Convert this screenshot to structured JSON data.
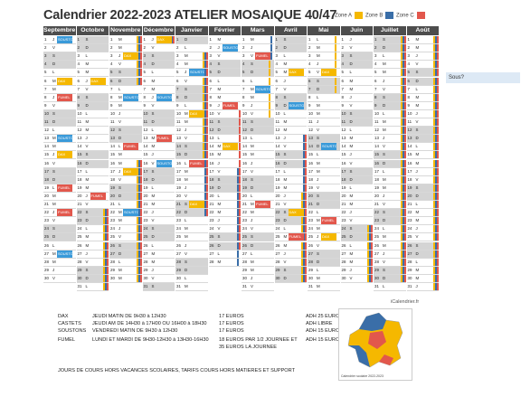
{
  "title": "Calendrier 2022-2023 ATELIER MOSAIQUE 40/47",
  "legend": [
    {
      "label": "Zone A",
      "color": "#f5b800"
    },
    {
      "label": "Zone B",
      "color": "#3a6ea8"
    },
    {
      "label": "Zone C",
      "color": "#e2574c"
    }
  ],
  "months": [
    "Septembre",
    "Octobre",
    "Novembre",
    "Décembre",
    "Janvier",
    "Février",
    "Mars",
    "Avril",
    "Mai",
    "Juin",
    "Juillet",
    "Août"
  ],
  "weekday_letters": [
    "L",
    "M",
    "M",
    "J",
    "V",
    "S",
    "D"
  ],
  "first_weekday": [
    3,
    5,
    1,
    3,
    6,
    2,
    2,
    5,
    0,
    3,
    5,
    1
  ],
  "month_lengths": [
    30,
    31,
    30,
    31,
    31,
    28,
    31,
    30,
    31,
    30,
    31,
    31
  ],
  "holiday_bars": [
    {
      "start_row": [
        1,
        22
      ],
      "end_row": [
        2,
        6
      ],
      "zones": [
        "A",
        "B",
        "C"
      ]
    },
    {
      "start_row": [
        2,
        16
      ],
      "end_row": [
        3,
        1
      ],
      "zones": [
        "A",
        "B",
        "C"
      ]
    },
    {
      "start_row": [
        4,
        3
      ],
      "end_row": [
        4,
        15
      ],
      "zones": [
        "A"
      ]
    },
    {
      "start_row": [
        4,
        3
      ],
      "end_row": [
        4,
        22
      ],
      "zones": [
        "B",
        "C"
      ]
    },
    {
      "start_row": [
        5,
        10
      ],
      "end_row": [
        5,
        26
      ],
      "zones": [
        "C"
      ]
    },
    {
      "start_row": [
        5,
        17
      ],
      "end_row": [
        6,
        3
      ],
      "zones": [
        "B"
      ]
    },
    {
      "start_row": [
        6,
        3
      ],
      "end_row": [
        6,
        10
      ],
      "zones": [
        "A"
      ]
    },
    {
      "start_row": [
        7,
        13
      ],
      "end_row": [
        7,
        30
      ],
      "zones": [
        "B",
        "C"
      ]
    },
    {
      "start_row": [
        7,
        20
      ],
      "end_row": [
        8,
        7
      ],
      "zones": [
        "A"
      ]
    },
    {
      "start_row": [
        9,
        24
      ],
      "end_row": [
        9,
        30
      ],
      "zones": [
        "A",
        "B",
        "C"
      ]
    },
    {
      "start_row": [
        10,
        0
      ],
      "end_row": [
        10,
        30
      ],
      "zones": [
        "A",
        "B",
        "C"
      ]
    },
    {
      "start_row": [
        11,
        0
      ],
      "end_row": [
        11,
        31
      ],
      "zones": [
        "A",
        "B",
        "C"
      ]
    }
  ],
  "events": [
    {
      "m": 0,
      "d": 1,
      "label": "SOUSTONS",
      "color": "#3a9ad9"
    },
    {
      "m": 0,
      "d": 6,
      "label": "DAX",
      "color": "#f5b800"
    },
    {
      "m": 0,
      "d": 8,
      "label": "FUMEL",
      "color": "#e2574c"
    },
    {
      "m": 0,
      "d": 13,
      "label": "SOUSTONS",
      "color": "#3a9ad9"
    },
    {
      "m": 0,
      "d": 15,
      "label": "DAX",
      "color": "#f5b800"
    },
    {
      "m": 0,
      "d": 19,
      "label": "FUMEL",
      "color": "#e2574c"
    },
    {
      "m": 0,
      "d": 22,
      "label": "FUMEL",
      "color": "#e2574c"
    },
    {
      "m": 0,
      "d": 27,
      "label": "SOUSTONS",
      "color": "#3a9ad9"
    },
    {
      "m": 1,
      "d": 6,
      "label": "DAX",
      "color": "#f5b800"
    },
    {
      "m": 1,
      "d": 20,
      "label": "FUMEL",
      "color": "#e2574c"
    },
    {
      "m": 2,
      "d": 3,
      "label": "DAX",
      "color": "#f5b800"
    },
    {
      "m": 2,
      "d": 8,
      "label": "SOUSTONS",
      "color": "#3a9ad9"
    },
    {
      "m": 2,
      "d": 14,
      "label": "FUMEL",
      "color": "#e2574c"
    },
    {
      "m": 2,
      "d": 17,
      "label": "DAX",
      "color": "#f5b800"
    },
    {
      "m": 2,
      "d": 22,
      "label": "SOUSTONS",
      "color": "#3a9ad9"
    },
    {
      "m": 3,
      "d": 1,
      "label": "DAX",
      "color": "#f5b800"
    },
    {
      "m": 3,
      "d": 8,
      "label": "SOUSTONS",
      "color": "#3a9ad9"
    },
    {
      "m": 3,
      "d": 13,
      "label": "FUMEL",
      "color": "#e2574c"
    },
    {
      "m": 3,
      "d": 16,
      "label": "SOUSTONS",
      "color": "#3a9ad9"
    },
    {
      "m": 4,
      "d": 5,
      "label": "SOUSTONS",
      "color": "#3a9ad9"
    },
    {
      "m": 4,
      "d": 10,
      "label": "DAX",
      "color": "#f5b800"
    },
    {
      "m": 4,
      "d": 16,
      "label": "FUMEL",
      "color": "#e2574c"
    },
    {
      "m": 4,
      "d": 21,
      "label": "DAX",
      "color": "#f5b800"
    },
    {
      "m": 5,
      "d": 2,
      "label": "SOUSTONS",
      "color": "#3a9ad9"
    },
    {
      "m": 5,
      "d": 9,
      "label": "FUMEL",
      "color": "#e2574c"
    },
    {
      "m": 5,
      "d": 14,
      "label": "DAX",
      "color": "#f5b800"
    },
    {
      "m": 6,
      "d": 3,
      "label": "FUMEL",
      "color": "#e2574c"
    },
    {
      "m": 6,
      "d": 7,
      "label": "SOUSTONS",
      "color": "#3a9ad9"
    },
    {
      "m": 6,
      "d": 21,
      "label": "FUMEL",
      "color": "#e2574c"
    },
    {
      "m": 7,
      "d": 5,
      "label": "DAX",
      "color": "#f5b800"
    },
    {
      "m": 7,
      "d": 9,
      "label": "SOUSTONS",
      "color": "#3a9ad9"
    },
    {
      "m": 7,
      "d": 22,
      "label": "DAX",
      "color": "#f5b800"
    },
    {
      "m": 7,
      "d": 25,
      "label": "FUMEL",
      "color": "#e2574c"
    },
    {
      "m": 8,
      "d": 5,
      "label": "DAX",
      "color": "#f5b800"
    },
    {
      "m": 8,
      "d": 14,
      "label": "SOUSTONS",
      "color": "#3a9ad9"
    },
    {
      "m": 8,
      "d": 23,
      "label": "FUMEL",
      "color": "#e2574c"
    },
    {
      "m": 8,
      "d": 25,
      "label": "DAX",
      "color": "#f5b800"
    }
  ],
  "sous_button": "Sous?",
  "credit": "iCalendrier.fr",
  "info": [
    [
      "DAX",
      "JEUDI MATIN DE 9H30 à 12H30",
      "17 EUROS",
      "ADH 25 EUROS"
    ],
    [
      "CASTETS",
      "JEUDI AM DE 14H30 à 17H00 OU 16H00 à 18H30",
      "17 EUROS",
      "ADH LIBRE"
    ],
    [
      "SOUSTONS",
      "VENDREDI MATIN DE 9H30 à 12H30",
      "17 EUROS",
      "ADH 15 EUROS"
    ],
    [
      "FUMEL",
      "LUNDI ET MARDI DE 9H30-12H30 à 13H30-16H30",
      "18 EUROS PAR 1/2 JOURNEE ET",
      "ADH 15 EUROS"
    ],
    [
      "",
      "",
      "35 EUROS LA JOURNEE",
      ""
    ]
  ],
  "footer": "JOURS DE COURS HORS VACANCES SCOLAIRES, TARIFS COURS HORS MATIERES ET SUPPORT",
  "map_label": "Calendrier scolaire 2022-2023"
}
